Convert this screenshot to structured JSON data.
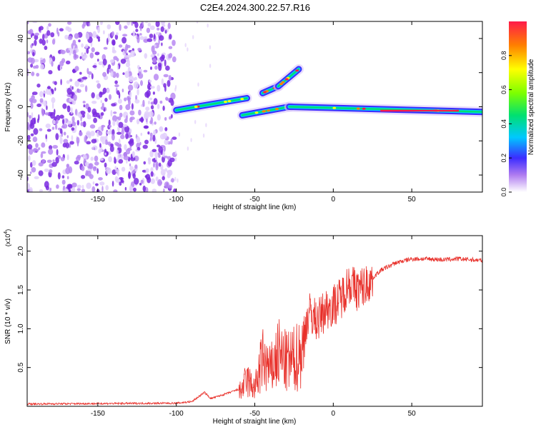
{
  "title": "C2E4.2024.300.22.57.R16",
  "colors": {
    "snr_line": "#e8302a",
    "scatter": "#8a2be2",
    "axis": "#000000"
  },
  "chart_data": [
    {
      "type": "heatmap",
      "xlabel": "Height of straight line (km)",
      "ylabel": "Frequency (Hz)",
      "xlim": [
        -195,
        95
      ],
      "ylim": [
        -50,
        50
      ],
      "xticks": [
        -150,
        -100,
        -50,
        0,
        50
      ],
      "yticks": [
        -40,
        -20,
        0,
        20,
        40
      ],
      "colorbar": {
        "label": "Normalized spectral amplitude",
        "range": [
          0,
          1
        ],
        "ticks": [
          "0.0",
          "0.2",
          "0.4",
          "0.6",
          "0.8"
        ]
      },
      "features": [
        {
          "x": [
            -100,
            -55
          ],
          "y": [
            -2,
            5
          ]
        },
        {
          "x": [
            -45,
            -35
          ],
          "y": [
            8,
            12
          ]
        },
        {
          "x": [
            -35,
            -22
          ],
          "y": [
            12,
            22
          ]
        },
        {
          "x": [
            -58,
            -28
          ],
          "y": [
            -5,
            0
          ]
        },
        {
          "x": [
            -28,
            95
          ],
          "y": [
            0,
            -3
          ]
        }
      ]
    },
    {
      "type": "line",
      "xlabel": "Height of straight line (km)",
      "ylabel": "SNR (10 * v/v)",
      "yscale_note": "(x10",
      "yscale_exp": "4",
      "xlim": [
        -195,
        95
      ],
      "ylim": [
        0,
        2.2
      ],
      "xticks": [
        -150,
        -100,
        -50,
        0,
        50
      ],
      "yticks": [
        "0.5",
        "1.0",
        "1.5",
        "2.0"
      ],
      "series": [
        {
          "x": [
            -195,
            -100,
            -90,
            -82,
            -78,
            -70,
            -60,
            -55,
            -50,
            -45,
            -40,
            -35,
            -30,
            -25,
            -20,
            -15,
            -10,
            -5,
            0,
            5,
            10,
            15,
            20,
            25,
            30,
            40,
            50,
            60,
            70,
            80,
            95
          ],
          "y": [
            0.03,
            0.04,
            0.06,
            0.18,
            0.1,
            0.15,
            0.22,
            0.45,
            0.3,
            0.8,
            0.6,
            0.9,
            0.75,
            0.8,
            0.95,
            1.2,
            1.1,
            1.25,
            1.3,
            1.4,
            1.6,
            1.5,
            1.55,
            1.65,
            1.75,
            1.85,
            1.9,
            1.9,
            1.89,
            1.9,
            1.88
          ]
        }
      ]
    }
  ]
}
